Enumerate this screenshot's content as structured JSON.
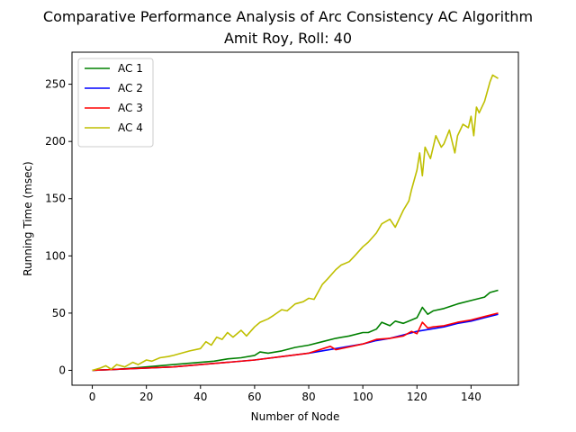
{
  "chart_data": {
    "type": "line",
    "title": "Comparative Performance Analysis of Arc Consistency AC Algorithm",
    "subtitle": "Amit Roy, Roll: 40",
    "xlabel": "Number of Node",
    "ylabel": "Running Time (msec)",
    "xlim": [
      -7.5,
      157.5
    ],
    "ylim": [
      -13,
      278
    ],
    "xticks": [
      0,
      20,
      40,
      60,
      80,
      100,
      120,
      140
    ],
    "yticks": [
      0,
      50,
      100,
      150,
      200,
      250
    ],
    "grid": false,
    "legend_position": "top-left",
    "series": [
      {
        "name": "AC 1",
        "color": "#008000",
        "x": [
          0,
          10,
          20,
          30,
          40,
          45,
          50,
          55,
          60,
          62,
          65,
          70,
          75,
          80,
          85,
          90,
          95,
          100,
          102,
          105,
          107,
          110,
          112,
          115,
          117,
          120,
          122,
          124,
          126,
          130,
          135,
          140,
          145,
          147,
          150
        ],
        "y": [
          0,
          1,
          3,
          5,
          7,
          8,
          10,
          11,
          13,
          16,
          15,
          17,
          20,
          22,
          25,
          28,
          30,
          33,
          33,
          36,
          42,
          39,
          43,
          41,
          43,
          46,
          55,
          49,
          52,
          54,
          58,
          61,
          64,
          68,
          70
        ]
      },
      {
        "name": "AC 2",
        "color": "#0000ff",
        "x": [
          0,
          10,
          20,
          30,
          40,
          50,
          60,
          70,
          80,
          90,
          100,
          105,
          110,
          115,
          120,
          125,
          130,
          135,
          140,
          145,
          150
        ],
        "y": [
          0,
          1,
          2,
          3,
          5,
          7,
          9,
          12,
          15,
          19,
          23,
          26,
          28,
          31,
          34,
          36,
          38,
          41,
          43,
          46,
          49
        ]
      },
      {
        "name": "AC 3",
        "color": "#ff0000",
        "x": [
          0,
          10,
          20,
          30,
          40,
          50,
          60,
          70,
          80,
          88,
          90,
          100,
          105,
          110,
          115,
          118,
          120,
          122,
          124,
          126,
          130,
          135,
          140,
          145,
          150
        ],
        "y": [
          0,
          1,
          2,
          3,
          5,
          7,
          9,
          12,
          15,
          21,
          18,
          23,
          27,
          28,
          30,
          34,
          32,
          42,
          37,
          38,
          39,
          42,
          44,
          47,
          50
        ]
      },
      {
        "name": "AC 4",
        "color": "#bfbf00",
        "x": [
          0,
          3,
          5,
          7,
          9,
          12,
          15,
          17,
          20,
          22,
          25,
          28,
          30,
          33,
          36,
          40,
          42,
          44,
          46,
          48,
          50,
          52,
          55,
          57,
          60,
          62,
          65,
          67,
          70,
          72,
          75,
          78,
          80,
          82,
          85,
          87,
          90,
          92,
          95,
          97,
          100,
          102,
          105,
          107,
          110,
          112,
          115,
          117,
          118,
          120,
          121,
          122,
          123,
          125,
          127,
          129,
          130,
          132,
          134,
          135,
          137,
          139,
          140,
          141,
          142,
          143,
          145,
          147,
          148,
          150
        ],
        "y": [
          0,
          2,
          4,
          1,
          5,
          3,
          7,
          5,
          9,
          8,
          11,
          12,
          13,
          15,
          17,
          19,
          25,
          22,
          29,
          27,
          33,
          29,
          35,
          30,
          38,
          42,
          45,
          48,
          53,
          52,
          58,
          60,
          63,
          62,
          75,
          80,
          88,
          92,
          95,
          100,
          108,
          112,
          120,
          128,
          132,
          125,
          140,
          148,
          158,
          175,
          190,
          170,
          195,
          185,
          205,
          195,
          198,
          210,
          190,
          205,
          215,
          212,
          222,
          205,
          230,
          225,
          235,
          252,
          258,
          255
        ]
      }
    ]
  }
}
